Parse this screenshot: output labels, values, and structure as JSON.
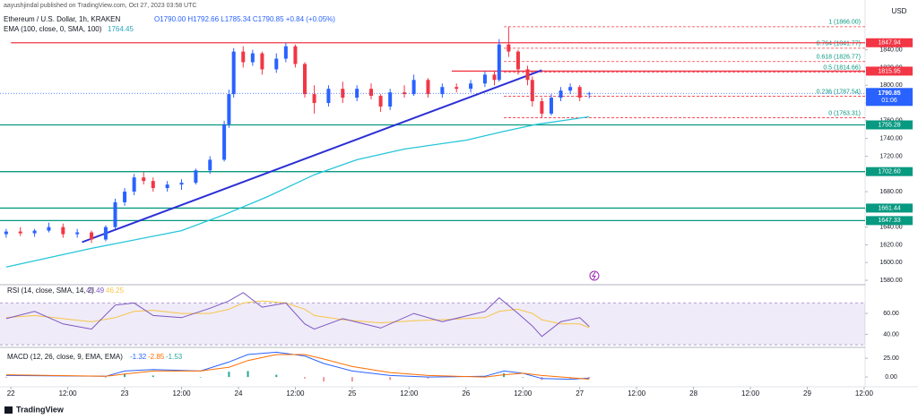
{
  "header": {
    "publisher": "aayushjindal published on TradingView.com, Oct 27, 2023 03:58 UTC",
    "symbol": "Ethereum / U.S. Dollar, 1h, KRAKEN",
    "ohlc": "O1790.00 H1792.66 L1785.34 C1790.85 +0.84 (+0.05%)",
    "ema_label": "EMA (100, close, 0, SMA, 100)",
    "ema_value": "1764.45",
    "currency": "USD"
  },
  "chart_data": [
    {
      "type": "candlestick",
      "up_color": "#2962ff",
      "down_color": "#f23645",
      "x": [
        -1,
        2,
        5,
        8,
        11,
        14,
        17,
        20,
        22,
        24,
        26,
        28,
        30,
        33,
        36,
        39,
        42,
        45,
        46,
        47,
        49,
        51,
        53,
        56,
        58,
        60,
        62,
        64,
        67,
        70,
        73,
        76,
        78,
        80,
        83,
        85,
        88,
        91,
        94,
        97,
        100,
        102,
        103,
        105,
        107,
        109,
        110,
        112,
        114,
        116,
        118,
        120,
        122
      ],
      "open": [
        1632,
        1635,
        1633,
        1636,
        1640,
        1632,
        1634,
        1626,
        1640,
        1668,
        1680,
        1696,
        1692,
        1684,
        1688,
        1690,
        1704,
        1716,
        1756,
        1790,
        1838,
        1826,
        1836,
        1818,
        1830,
        1844,
        1824,
        1790,
        1780,
        1796,
        1786,
        1796,
        1788,
        1776,
        1792,
        1790,
        1806,
        1790,
        1798,
        1796,
        1802,
        1812,
        1806,
        1846,
        1838,
        1818,
        1806,
        1782,
        1768,
        1786,
        1794,
        1798,
        1790
      ],
      "high": [
        1638,
        1640,
        1638,
        1645,
        1644,
        1638,
        1636,
        1642,
        1672,
        1684,
        1700,
        1702,
        1696,
        1692,
        1694,
        1706,
        1720,
        1760,
        1795,
        1842,
        1844,
        1840,
        1838,
        1836,
        1848,
        1846,
        1826,
        1800,
        1800,
        1804,
        1800,
        1802,
        1790,
        1796,
        1800,
        1812,
        1808,
        1802,
        1802,
        1806,
        1816,
        1816,
        1852,
        1866,
        1840,
        1822,
        1810,
        1786,
        1790,
        1798,
        1802,
        1800,
        1792.66
      ],
      "low": [
        1628,
        1630,
        1629,
        1634,
        1628,
        1628,
        1622,
        1624,
        1638,
        1664,
        1676,
        1688,
        1680,
        1680,
        1682,
        1688,
        1700,
        1714,
        1752,
        1786,
        1820,
        1822,
        1812,
        1814,
        1826,
        1820,
        1786,
        1768,
        1776,
        1780,
        1782,
        1784,
        1770,
        1772,
        1786,
        1788,
        1786,
        1786,
        1792,
        1792,
        1798,
        1800,
        1804,
        1832,
        1812,
        1800,
        1776,
        1763.31,
        1766,
        1782,
        1790,
        1782,
        1785.34
      ],
      "close": [
        1635,
        1633,
        1636,
        1640,
        1632,
        1634,
        1626,
        1640,
        1668,
        1680,
        1696,
        1692,
        1684,
        1688,
        1690,
        1704,
        1716,
        1756,
        1790,
        1838,
        1826,
        1836,
        1818,
        1830,
        1844,
        1824,
        1790,
        1780,
        1796,
        1786,
        1796,
        1788,
        1776,
        1792,
        1790,
        1806,
        1790,
        1798,
        1796,
        1802,
        1812,
        1806,
        1846,
        1838,
        1818,
        1806,
        1782,
        1768,
        1786,
        1794,
        1798,
        1786,
        1790.85
      ],
      "ylim": [
        1575,
        1878
      ],
      "yticks": [
        {
          "value": 1580,
          "label": "1580.00"
        },
        {
          "value": 1600,
          "label": "1600.00"
        },
        {
          "value": 1620,
          "label": "1620.00"
        },
        {
          "value": 1640,
          "label": "1640.00"
        },
        {
          "value": 1660,
          "label": "1660.00"
        },
        {
          "value": 1680,
          "label": "1680.00"
        },
        {
          "value": 1700,
          "label": "1700.00"
        },
        {
          "value": 1720,
          "label": "1720.00"
        },
        {
          "value": 1740,
          "label": "1740.00"
        },
        {
          "value": 1760,
          "label": "1760.00"
        },
        {
          "value": 1780,
          "label": "1780.00"
        },
        {
          "value": 1800,
          "label": "1800.00"
        },
        {
          "value": 1820,
          "label": "1820.00"
        },
        {
          "value": 1840,
          "label": "1840.00"
        }
      ],
      "xlim": [
        -2.3,
        180.2
      ],
      "xticks": [
        {
          "value": 0,
          "label": "22"
        },
        {
          "value": 12,
          "label": "12:00"
        },
        {
          "value": 24,
          "label": "23"
        },
        {
          "value": 36,
          "label": "12:00"
        },
        {
          "value": 48,
          "label": "24"
        },
        {
          "value": 60,
          "label": "12:00"
        },
        {
          "value": 72,
          "label": "25"
        },
        {
          "value": 84,
          "label": "12:00"
        },
        {
          "value": 96,
          "label": "26"
        },
        {
          "value": 108,
          "label": "12:00"
        },
        {
          "value": 120,
          "label": "27"
        },
        {
          "value": 132,
          "label": "12:00"
        },
        {
          "value": 144,
          "label": "28"
        },
        {
          "value": 156,
          "label": "12:00"
        },
        {
          "value": 168,
          "label": "29"
        },
        {
          "value": 180,
          "label": "12:00"
        }
      ],
      "ema": {
        "color": "#26c6da",
        "x": [
          -1,
          17,
          36,
          45,
          54,
          64,
          73,
          83,
          96,
          104,
          111,
          122
        ],
        "values": [
          1595,
          1616,
          1636,
          1654,
          1674,
          1699,
          1716,
          1728,
          1738,
          1748,
          1756,
          1764.45
        ]
      },
      "trendline": {
        "color": "#2b2fd6",
        "x": [
          15,
          112
        ],
        "values": [
          1623,
          1817
        ]
      },
      "levels": [
        {
          "value": 1847.94,
          "label": "1847.94",
          "color": "#f23645",
          "from": 0
        },
        {
          "value": 1815.95,
          "label": "1815.95",
          "color": "#f23645",
          "from": 93
        },
        {
          "value": 1755.28,
          "label": "1755.28",
          "color": "#089981",
          "from": -2.3
        },
        {
          "value": 1702.6,
          "label": "1702.60",
          "color": "#089981",
          "from": -2.3
        },
        {
          "value": 1661.44,
          "label": "1661.44",
          "color": "#089981",
          "from": -2.3
        },
        {
          "value": 1647.33,
          "label": "1647.33",
          "color": "#089981",
          "from": -2.3
        }
      ],
      "fib": {
        "color": "#f23645",
        "from": 104,
        "levels": [
          {
            "value": 1866,
            "label": "1 (1866.00)"
          },
          {
            "value": 1841.77,
            "label": "0.764 (1841.77)"
          },
          {
            "value": 1826.77,
            "label": "0.618 (1826.77)"
          },
          {
            "value": 1814.66,
            "label": "0.5 (1814.66)"
          },
          {
            "value": 1787.54,
            "label": "0.236 (1787.54)"
          },
          {
            "value": 1763.31,
            "label": "0 (1763.31)"
          }
        ]
      },
      "last_price": {
        "value": 1790.85,
        "label": "1790.85",
        "countdown": "01:06",
        "color": "#2962ff"
      }
    },
    {
      "type": "line",
      "title": "RSI (14, close, SMA, 14, 2)",
      "value_labels": [
        "47.49",
        "46.25"
      ],
      "x": [
        -1,
        5,
        11,
        17,
        22,
        26,
        30,
        36,
        42,
        46,
        49,
        53,
        58,
        62,
        64,
        70,
        78,
        85,
        91,
        100,
        103,
        107,
        110,
        112,
        116,
        120,
        122
      ],
      "series": [
        {
          "color": "#7e57c2",
          "values": [
            55,
            62,
            50,
            45,
            68,
            70,
            58,
            56,
            65,
            72,
            80,
            66,
            70,
            50,
            45,
            55,
            46,
            60,
            52,
            62,
            75,
            60,
            48,
            38,
            52,
            56,
            47.49
          ]
        },
        {
          "color": "#f7c548",
          "values": [
            56,
            58,
            55,
            52,
            56,
            62,
            63,
            60,
            60,
            64,
            70,
            72,
            70,
            64,
            58,
            54,
            51,
            53,
            54,
            56,
            62,
            64,
            60,
            54,
            50,
            50,
            46.25
          ]
        }
      ],
      "band": [
        30,
        70
      ],
      "ylim": [
        27.5,
        87.5
      ],
      "yticks": [
        {
          "value": 40,
          "label": "40.00"
        },
        {
          "value": 60,
          "label": "60.00"
        }
      ]
    },
    {
      "type": "macd",
      "title": "MACD (12, 26, close, 9, EMA, EMA)",
      "value_labels": [
        "-1.32",
        "-2.85",
        "-1.53"
      ],
      "x": [
        -1,
        20,
        24,
        30,
        40,
        46,
        50,
        56,
        62,
        66,
        72,
        80,
        88,
        100,
        104,
        108,
        112,
        118,
        122
      ],
      "series": [
        {
          "color": "#2962ff",
          "values": [
            2,
            1,
            8,
            10,
            8,
            20,
            30,
            33,
            28,
            18,
            8,
            2,
            0,
            1,
            8,
            5,
            -2,
            -3,
            -1.32
          ]
        },
        {
          "color": "#ff6d00",
          "values": [
            3,
            1,
            4,
            8,
            8,
            13,
            22,
            30,
            30,
            24,
            14,
            6,
            2,
            0,
            3,
            5,
            2,
            -1,
            -2.85
          ]
        }
      ],
      "histogram": {
        "up_color": "#26a69a",
        "down_color": "#ef9a9a",
        "values": [
          -1,
          0,
          4,
          2,
          0,
          7,
          8,
          3,
          -2,
          -6,
          -6,
          -4,
          -2,
          1,
          5,
          0,
          -4,
          -2,
          -1.53
        ]
      },
      "ylim": [
        -13,
        39.5
      ],
      "yticks": [
        {
          "value": 0,
          "label": "0.00"
        },
        {
          "value": 25,
          "label": "25.00"
        }
      ]
    }
  ],
  "footer": {
    "brand": "TradingView"
  }
}
